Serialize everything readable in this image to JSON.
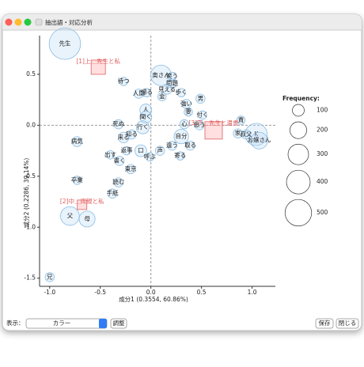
{
  "window": {
    "title": "抽出語・対応分析"
  },
  "chart_data": {
    "type": "bubble",
    "xlabel": "成分1 (0.3554, 60.86%)",
    "ylabel": "成分2 (0.2286, 39.14%)",
    "xlim": [
      -1.1,
      1.23
    ],
    "ylim": [
      -1.58,
      0.88
    ],
    "xticks": [
      {
        "value": -1.0,
        "label": "-1.0"
      },
      -0.5,
      {
        "value": 0.0,
        "label": "0.0"
      },
      0.5,
      {
        "value": 1.0,
        "label": "1.0"
      }
    ],
    "yticks": [
      0.5,
      {
        "value": 0.0,
        "label": "0.0"
      },
      -0.5,
      {
        "value": -1.0,
        "label": "-1.0"
      },
      -1.5
    ],
    "origin_lines": true,
    "series": [
      {
        "name": "words",
        "color": "#8cbce0",
        "labels": [
          "先生",
          "待つ",
          "人間",
          "帰る",
          "奥さん",
          "笑う",
          "問題",
          "見える",
          "金",
          "歩く",
          "男",
          "強い",
          "妻",
          "付く",
          "人",
          "聞く",
          "死ぬ",
          "行く",
          "心",
          "思う",
          "来る",
          "知る",
          "病気",
          "自分",
          "違う",
          "取る",
          "出す",
          "返事",
          "口",
          "声",
          "寄る",
          "書く",
          "呼ぶ",
          "東京",
          "読む",
          "手紙",
          "卒業",
          "父",
          "母",
          "兄",
          "家",
          "K",
          "叔父",
          "お嬢さん",
          "責"
        ],
        "x": [
          -0.85,
          -0.27,
          -0.12,
          -0.04,
          0.1,
          0.21,
          0.21,
          0.16,
          0.11,
          0.3,
          0.49,
          0.35,
          0.37,
          0.51,
          -0.05,
          -0.05,
          -0.32,
          -0.08,
          0.33,
          0.48,
          -0.27,
          -0.19,
          -0.73,
          0.3,
          0.21,
          0.39,
          -0.4,
          -0.24,
          -0.1,
          0.09,
          0.29,
          -0.31,
          -0.01,
          -0.2,
          -0.32,
          -0.38,
          -0.73,
          -0.8,
          -0.63,
          -1.0,
          0.86,
          1.04,
          0.94,
          1.07,
          0.89
        ],
        "y": [
          0.8,
          0.43,
          0.31,
          0.32,
          0.49,
          0.48,
          0.41,
          0.35,
          0.28,
          0.32,
          0.26,
          0.21,
          0.13,
          0.1,
          0.15,
          0.08,
          0.01,
          -0.02,
          0.01,
          0.0,
          -0.12,
          -0.09,
          -0.16,
          -0.11,
          -0.2,
          -0.2,
          -0.29,
          -0.25,
          -0.25,
          -0.25,
          -0.3,
          -0.35,
          -0.31,
          -0.43,
          -0.56,
          -0.67,
          -0.54,
          -0.89,
          -0.92,
          -1.49,
          -0.08,
          -0.09,
          -0.09,
          -0.15,
          0.05
        ],
        "size": [
          700,
          50,
          60,
          50,
          300,
          50,
          60,
          60,
          50,
          50,
          60,
          60,
          50,
          50,
          100,
          100,
          60,
          120,
          60,
          60,
          80,
          60,
          70,
          150,
          60,
          60,
          50,
          50,
          100,
          60,
          50,
          60,
          50,
          60,
          60,
          60,
          50,
          250,
          180,
          60,
          60,
          350,
          60,
          200,
          50
        ]
      },
      {
        "name": "variables",
        "color": "#e06060",
        "labels": [
          "[1]上＿先生と私",
          "[2]中＿両親と私",
          "[3]下＿先生と遺書"
        ],
        "x": [
          -0.52,
          -0.68,
          0.62
        ],
        "y": [
          0.57,
          -0.78,
          -0.05
        ],
        "size": [
          144,
          64,
          215
        ]
      }
    ],
    "size_legend": {
      "title": "Frequency:",
      "values": [
        100,
        200,
        300,
        400,
        500
      ]
    }
  },
  "controls": {
    "display_label": "表示：",
    "select": "カラー",
    "adjust": "調整",
    "save": "保存",
    "close": "閉じる"
  }
}
